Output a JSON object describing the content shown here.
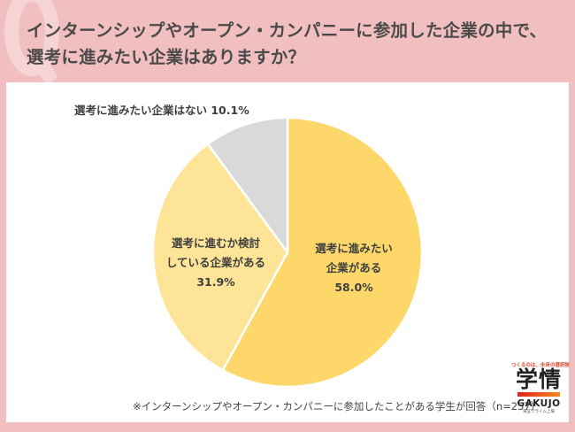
{
  "header": {
    "title_line1": "インターンシップやオープン・カンパニーに参加した企業の中で、",
    "title_line2": "選考に進みたい企業はありますか？"
  },
  "chart_data": {
    "type": "pie",
    "title": "インターンシップやオープン・カンパニーに参加した企業の中で、選考に進みたい企業はありますか？",
    "start_angle": "12 o'clock, clockwise",
    "slices": [
      {
        "label": "選考に進みたい企業がある",
        "value": 58.0,
        "color": "#fdd76a"
      },
      {
        "label": "選考に進むか検討している企業がある",
        "value": 31.9,
        "color": "#fee497"
      },
      {
        "label": "選考に進みたい企業はない",
        "value": 10.1,
        "color": "#d9d9d9"
      }
    ],
    "legend": "none (direct labels)",
    "note": "※インターンシップやオープン・カンパニーに参加したことがある学生が回答（n=257）"
  },
  "labels": {
    "slice1_line1": "選考に進みたい",
    "slice1_line2": "企業がある",
    "slice1_pct": "58.0%",
    "slice2_line1": "選考に進むか検討",
    "slice2_line2": "している企業がある",
    "slice2_pct": "31.9%",
    "slice3": "選考に進みたい企業はない 10.1%"
  },
  "footer": {
    "note": "※インターンシップやオープン・カンパニーに参加したことがある学生が回答（n=257）"
  },
  "logo": {
    "tagline": "つくるのは、未来の選択肢",
    "kanji": "学情",
    "name": "GAKUJO",
    "sub": "東証プライム上場"
  }
}
